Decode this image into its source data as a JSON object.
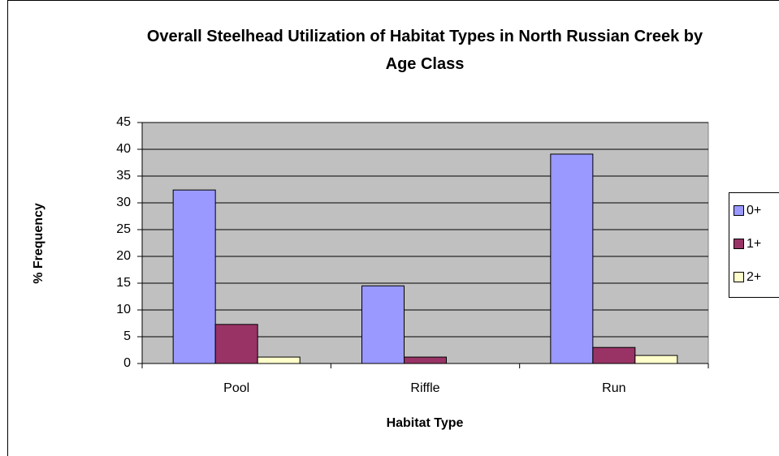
{
  "chart_data": {
    "type": "bar",
    "title": "Overall Steelhead Utilization of Habitat Types in North Russian Creek by Age Class",
    "x_label": "Habitat Type",
    "y_label": "% Frequency",
    "categories": [
      "Pool",
      "Riffle",
      "Run"
    ],
    "series": [
      {
        "name": "0+",
        "color": "#9999ff",
        "values": [
          32.4,
          14.5,
          39.1
        ]
      },
      {
        "name": "1+",
        "color": "#993366",
        "values": [
          7.3,
          1.2,
          3.0
        ]
      },
      {
        "name": "2+",
        "color": "#ffffcc",
        "values": [
          1.2,
          0,
          1.5
        ]
      }
    ],
    "ylim": [
      0,
      45
    ],
    "yticks": [
      0,
      5,
      10,
      15,
      20,
      25,
      30,
      35,
      40,
      45
    ],
    "grid": true,
    "plot_background": "#c0c0c0",
    "legend": "right"
  }
}
